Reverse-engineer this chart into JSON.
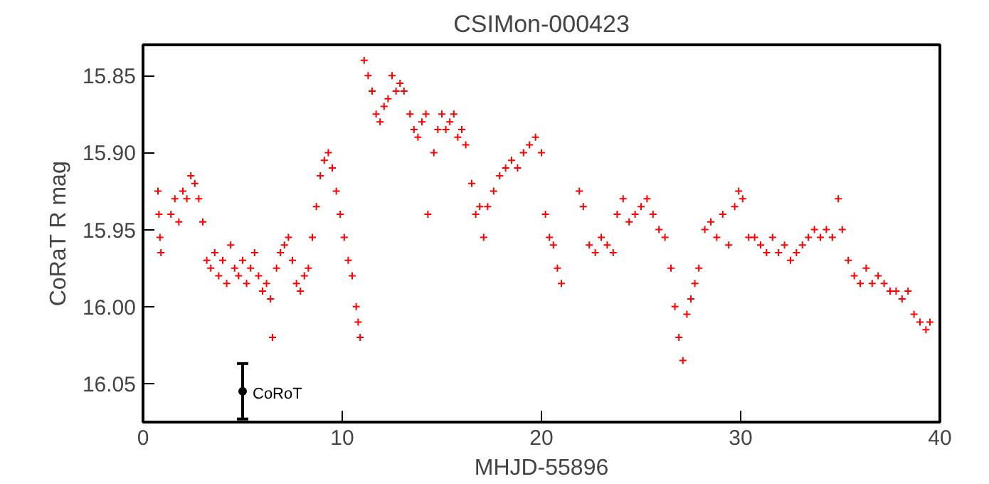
{
  "chart_data": {
    "type": "scatter",
    "title": "CSIMon-000423",
    "xlabel": "MHJD-55896",
    "ylabel": "CoRaT R mag",
    "xlim": [
      0,
      40
    ],
    "xticks": [
      0,
      10,
      20,
      30,
      40
    ],
    "ylim": [
      16.075,
      15.83
    ],
    "yticks": [
      15.85,
      {
        "value": 15.9,
        "label": "15.90"
      },
      15.95,
      {
        "value": 16.0,
        "label": "16.00"
      },
      16.05
    ],
    "grid": false,
    "legend": false,
    "marker": "cross",
    "series": [
      {
        "color": "#ff0000",
        "x": [
          0.75,
          0.8,
          0.85,
          0.9,
          1.4,
          1.6,
          1.8,
          2.0,
          2.2,
          2.4,
          2.6,
          2.8,
          3.0,
          3.2,
          3.4,
          3.6,
          3.8,
          4.0,
          4.2,
          4.4,
          4.6,
          4.8,
          5.0,
          5.2,
          5.4,
          5.6,
          5.8,
          6.0,
          6.2,
          6.4,
          6.5,
          6.7,
          6.9,
          7.1,
          7.3,
          7.5,
          7.7,
          7.9,
          8.1,
          8.3,
          8.5,
          8.7,
          8.9,
          9.1,
          9.3,
          9.5,
          9.7,
          9.9,
          10.1,
          10.3,
          10.5,
          10.7,
          10.8,
          10.9,
          11.1,
          11.3,
          11.5,
          11.7,
          11.9,
          12.1,
          12.3,
          12.5,
          12.7,
          12.9,
          13.1,
          13.4,
          13.6,
          13.8,
          14.0,
          14.2,
          14.3,
          14.6,
          14.8,
          15.0,
          15.2,
          15.4,
          15.6,
          15.8,
          16.0,
          16.2,
          16.5,
          16.7,
          16.9,
          17.1,
          17.3,
          17.6,
          17.9,
          18.2,
          18.5,
          18.8,
          19.1,
          19.4,
          19.7,
          20.0,
          20.2,
          20.4,
          20.6,
          20.8,
          21.0,
          21.9,
          22.1,
          22.4,
          22.7,
          23.0,
          23.3,
          23.6,
          23.8,
          24.1,
          24.4,
          24.7,
          25.0,
          25.3,
          25.6,
          25.9,
          26.2,
          26.5,
          26.7,
          26.9,
          27.1,
          27.3,
          27.5,
          27.7,
          27.9,
          28.2,
          28.5,
          28.8,
          29.1,
          29.4,
          29.7,
          29.9,
          30.1,
          30.4,
          30.7,
          31.0,
          31.3,
          31.6,
          31.9,
          32.2,
          32.5,
          32.8,
          33.1,
          33.4,
          33.7,
          34.0,
          34.3,
          34.6,
          34.9,
          35.1,
          35.4,
          35.7,
          36.0,
          36.3,
          36.6,
          36.9,
          37.2,
          37.5,
          37.8,
          38.1,
          38.4,
          38.7,
          39.0,
          39.3,
          39.5
        ],
        "values": [
          15.925,
          15.94,
          15.955,
          15.965,
          15.94,
          15.93,
          15.945,
          15.925,
          15.93,
          15.915,
          15.92,
          15.93,
          15.945,
          15.97,
          15.975,
          15.965,
          15.98,
          15.97,
          15.985,
          15.96,
          15.975,
          15.98,
          15.97,
          15.985,
          15.975,
          15.965,
          15.98,
          15.99,
          15.985,
          15.995,
          16.02,
          15.975,
          15.965,
          15.96,
          15.955,
          15.97,
          15.985,
          15.99,
          15.98,
          15.975,
          15.955,
          15.935,
          15.915,
          15.905,
          15.9,
          15.91,
          15.925,
          15.94,
          15.955,
          15.97,
          15.98,
          16.0,
          16.01,
          16.02,
          15.84,
          15.85,
          15.86,
          15.875,
          15.88,
          15.87,
          15.865,
          15.85,
          15.86,
          15.855,
          15.86,
          15.875,
          15.885,
          15.89,
          15.88,
          15.875,
          15.94,
          15.9,
          15.885,
          15.875,
          15.885,
          15.88,
          15.875,
          15.89,
          15.885,
          15.895,
          15.92,
          15.94,
          15.935,
          15.955,
          15.935,
          15.925,
          15.915,
          15.91,
          15.905,
          15.91,
          15.9,
          15.895,
          15.89,
          15.9,
          15.94,
          15.955,
          15.96,
          15.975,
          15.985,
          15.925,
          15.935,
          15.96,
          15.965,
          15.955,
          15.96,
          15.965,
          15.94,
          15.93,
          15.945,
          15.94,
          15.935,
          15.93,
          15.94,
          15.95,
          15.955,
          15.975,
          16.0,
          16.02,
          16.035,
          16.005,
          15.995,
          15.985,
          15.975,
          15.95,
          15.945,
          15.955,
          15.94,
          15.96,
          15.935,
          15.925,
          15.93,
          15.955,
          15.955,
          15.96,
          15.965,
          15.955,
          15.965,
          15.96,
          15.97,
          15.965,
          15.96,
          15.955,
          15.95,
          15.955,
          15.95,
          15.955,
          15.93,
          15.95,
          15.97,
          15.98,
          15.985,
          15.975,
          15.985,
          15.98,
          15.985,
          15.99,
          15.99,
          15.995,
          15.99,
          16.005,
          16.01,
          16.015,
          16.01
        ]
      },
      {
        "name": "CoRoT",
        "color": "#000000",
        "marker": "circle",
        "x": [
          5
        ],
        "values": [
          16.055
        ],
        "errors": [
          0.018
        ]
      }
    ]
  }
}
